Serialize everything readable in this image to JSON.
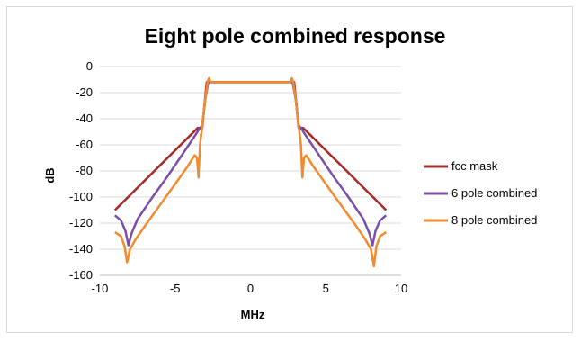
{
  "chart_data": {
    "type": "line",
    "title": "Eight pole combined response",
    "xlabel": "MHz",
    "ylabel": "dB",
    "xlim": [
      -10,
      10
    ],
    "ylim": [
      -160,
      0
    ],
    "xticks": [
      -10,
      -5,
      0,
      5,
      10
    ],
    "yticks": [
      0,
      -20,
      -40,
      -60,
      -80,
      -100,
      -120,
      -140,
      -160
    ],
    "grid": "horizontal",
    "legend_position": "right",
    "series": [
      {
        "name": "fcc mask",
        "color": "#a52a2a",
        "points": [
          [
            -9,
            -110
          ],
          [
            -3.5,
            -47
          ],
          [
            -3.2,
            -47
          ],
          [
            -2.9,
            -12
          ],
          [
            2.9,
            -12
          ],
          [
            3.2,
            -47
          ],
          [
            3.5,
            -47
          ],
          [
            9,
            -110
          ]
        ]
      },
      {
        "name": "6 pole combined",
        "color": "#7a4fa8",
        "points": [
          [
            -9,
            -114
          ],
          [
            -8.6,
            -118
          ],
          [
            -8.3,
            -126
          ],
          [
            -8.1,
            -137
          ],
          [
            -7.9,
            -128
          ],
          [
            -7.5,
            -117
          ],
          [
            -6.5,
            -100
          ],
          [
            -5.5,
            -84
          ],
          [
            -4.5,
            -67
          ],
          [
            -3.8,
            -55
          ],
          [
            -3.4,
            -48
          ],
          [
            -3.2,
            -45
          ],
          [
            -3.0,
            -25
          ],
          [
            -2.8,
            -12
          ],
          [
            -1,
            -12
          ],
          [
            0,
            -12
          ],
          [
            1,
            -12
          ],
          [
            2.8,
            -12
          ],
          [
            3.0,
            -25
          ],
          [
            3.2,
            -45
          ],
          [
            3.4,
            -48
          ],
          [
            3.8,
            -55
          ],
          [
            4.5,
            -67
          ],
          [
            5.5,
            -84
          ],
          [
            6.5,
            -100
          ],
          [
            7.5,
            -117
          ],
          [
            7.9,
            -128
          ],
          [
            8.1,
            -137
          ],
          [
            8.3,
            -126
          ],
          [
            8.6,
            -118
          ],
          [
            9,
            -114
          ]
        ]
      },
      {
        "name": "8 pole combined",
        "color": "#f28a2e",
        "points": [
          [
            -9,
            -127
          ],
          [
            -8.6,
            -130
          ],
          [
            -8.35,
            -138
          ],
          [
            -8.2,
            -150
          ],
          [
            -8.0,
            -140
          ],
          [
            -7.6,
            -132
          ],
          [
            -7,
            -122
          ],
          [
            -6,
            -106
          ],
          [
            -5,
            -90
          ],
          [
            -4.2,
            -77
          ],
          [
            -3.7,
            -68
          ],
          [
            -3.55,
            -70
          ],
          [
            -3.5,
            -77
          ],
          [
            -3.45,
            -85
          ],
          [
            -3.35,
            -60
          ],
          [
            -3.2,
            -45
          ],
          [
            -3.0,
            -25
          ],
          [
            -2.85,
            -12
          ],
          [
            -2.75,
            -9
          ],
          [
            -2.65,
            -12
          ],
          [
            0,
            -12
          ],
          [
            2.65,
            -12
          ],
          [
            2.75,
            -9
          ],
          [
            2.85,
            -12
          ],
          [
            3.0,
            -25
          ],
          [
            3.2,
            -45
          ],
          [
            3.35,
            -60
          ],
          [
            3.45,
            -85
          ],
          [
            3.5,
            -77
          ],
          [
            3.55,
            -70
          ],
          [
            3.7,
            -68
          ],
          [
            4.2,
            -77
          ],
          [
            5,
            -90
          ],
          [
            6,
            -106
          ],
          [
            7,
            -122
          ],
          [
            7.6,
            -132
          ],
          [
            8.0,
            -140
          ],
          [
            8.2,
            -153
          ],
          [
            8.35,
            -138
          ],
          [
            8.6,
            -130
          ],
          [
            9,
            -127
          ]
        ]
      }
    ]
  }
}
